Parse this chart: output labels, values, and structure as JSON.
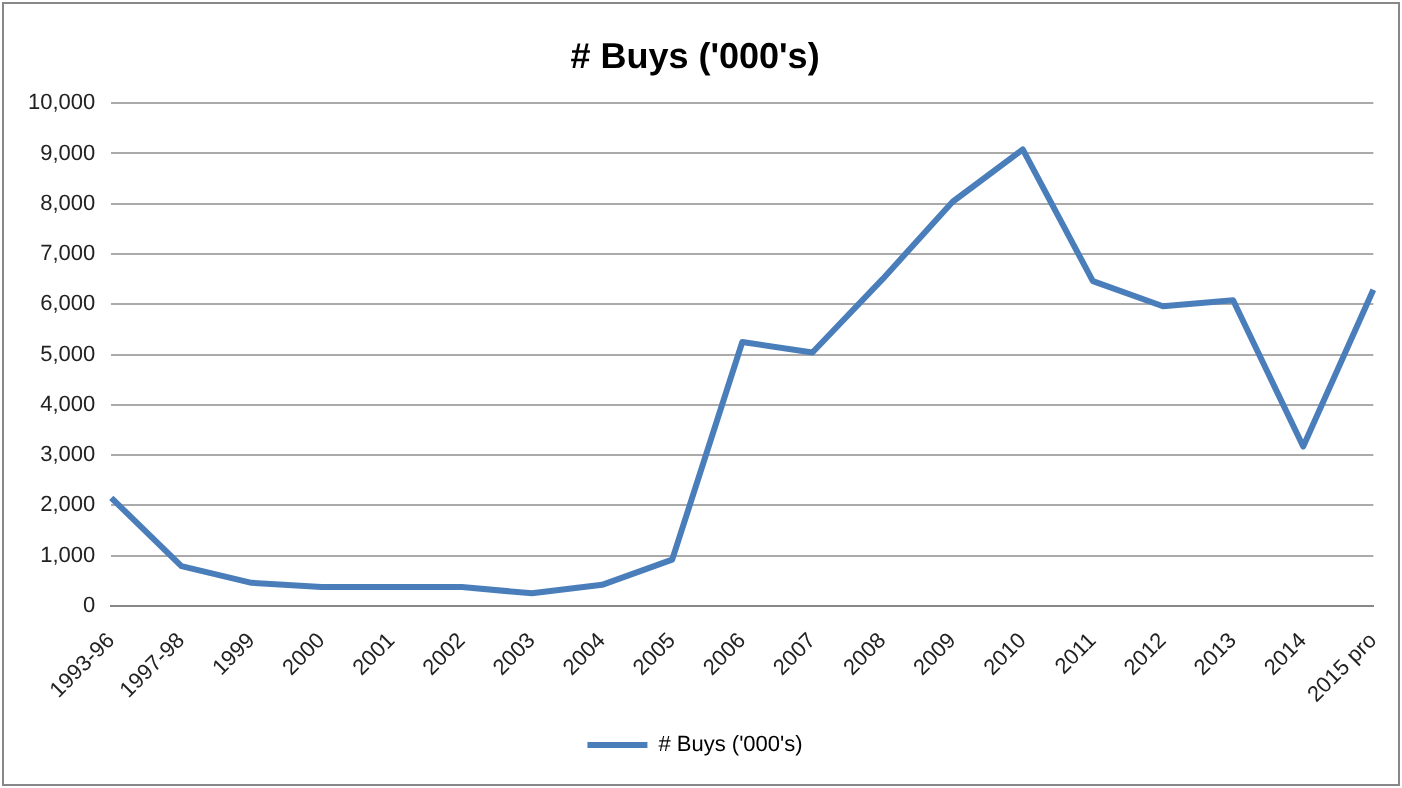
{
  "chart_data": {
    "type": "line",
    "title": "# Buys ('000's)",
    "categories": [
      "1993-96",
      "1997-98",
      "1999",
      "2000",
      "2001",
      "2002",
      "2003",
      "2004",
      "2005",
      "2006",
      "2007",
      "2008",
      "2009",
      "2010",
      "2011",
      "2012",
      "2013",
      "2014",
      "2015 pro"
    ],
    "series": [
      {
        "name": "# Buys ('000's)",
        "color": "#4a7ebb",
        "values": [
          2150,
          790,
          460,
          375,
          375,
          375,
          250,
          420,
          920,
          5250,
          5040,
          6500,
          8040,
          9080,
          6460,
          5960,
          6080,
          3170,
          6290
        ]
      }
    ],
    "ylim": [
      0,
      10000
    ],
    "yticks": [
      {
        "value": 0,
        "label": "0"
      },
      {
        "value": 1000,
        "label": "1,000"
      },
      {
        "value": 2000,
        "label": "2,000"
      },
      {
        "value": 3000,
        "label": "3,000"
      },
      {
        "value": 4000,
        "label": "4,000"
      },
      {
        "value": 5000,
        "label": "5,000"
      },
      {
        "value": 6000,
        "label": "6,000"
      },
      {
        "value": 7000,
        "label": "7,000"
      },
      {
        "value": 8000,
        "label": "8,000"
      },
      {
        "value": 9000,
        "label": "9,000"
      },
      {
        "value": 10000,
        "label": "10,000"
      }
    ],
    "grid": "y",
    "legend": "bottom",
    "marker": "none",
    "line_style": "solid"
  }
}
